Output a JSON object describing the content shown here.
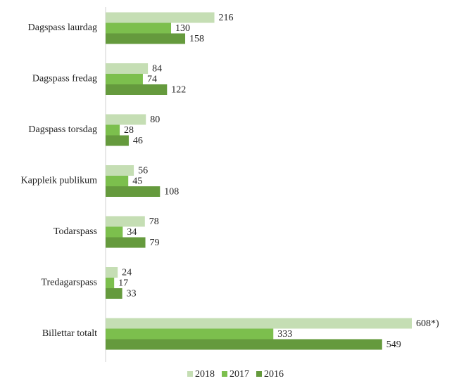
{
  "chart_data": {
    "type": "barh",
    "categories": [
      "Dagspass laurdag",
      "Dagspass fredag",
      "Dagspass torsdag",
      "Kappleik publikum",
      "Todarspass",
      "Tredagarspass",
      "Billettar totalt"
    ],
    "series": [
      {
        "name": "2018",
        "color": "#c5deb4",
        "values": [
          216,
          84,
          80,
          56,
          78,
          24,
          608
        ],
        "value_labels": [
          "216",
          "84",
          "80",
          "56",
          "78",
          "24",
          "608*)"
        ]
      },
      {
        "name": "2017",
        "color": "#7cbf4d",
        "values": [
          130,
          74,
          28,
          45,
          34,
          17,
          333
        ]
      },
      {
        "name": "2016",
        "color": "#659a3d",
        "values": [
          158,
          122,
          46,
          108,
          79,
          33,
          549
        ]
      }
    ],
    "legend": "bottom"
  }
}
